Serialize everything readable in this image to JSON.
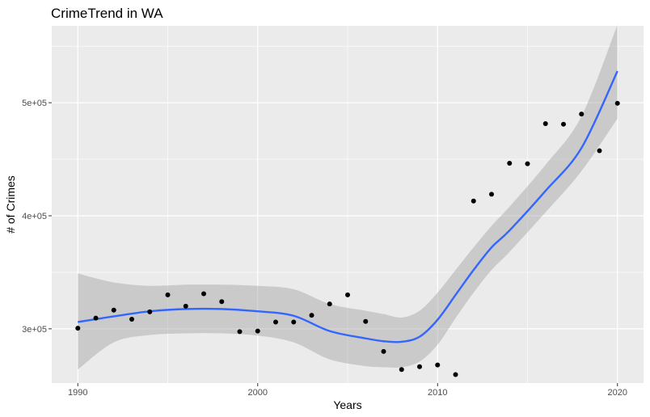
{
  "chart_data": {
    "type": "scatter",
    "title": "CrimeTrend in WA",
    "xlabel": "Years",
    "ylabel": "# of Crimes",
    "xlim": [
      1988.55,
      2021.45
    ],
    "ylim": [
      252000,
      568000
    ],
    "x_ticks": [
      1990,
      2000,
      2010,
      2020
    ],
    "x_tick_labels": [
      "1990",
      "2000",
      "2010",
      "2020"
    ],
    "y_ticks": [
      300000,
      400000,
      500000
    ],
    "y_tick_labels": [
      "3e+05",
      "4e+05",
      "5e+05"
    ],
    "grid": true,
    "legend": "none",
    "points": {
      "x": [
        1990,
        1991,
        1992,
        1993,
        1994,
        1995,
        1996,
        1997,
        1998,
        1999,
        2000,
        2001,
        2002,
        2003,
        2004,
        2005,
        2006,
        2007,
        2008,
        2009,
        2010,
        2011,
        2012,
        2013,
        2014,
        2015,
        2016,
        2017,
        2018,
        2019,
        2020
      ],
      "y": [
        300500,
        309500,
        316500,
        308500,
        315000,
        330000,
        320000,
        331000,
        324000,
        297500,
        298000,
        306000,
        306000,
        312000,
        322000,
        330000,
        306500,
        280000,
        264000,
        266500,
        268000,
        259500,
        413000,
        419000,
        446500,
        446000,
        481500,
        481000,
        490000,
        457500,
        499500
      ],
      "color": "#000000"
    },
    "smooth": {
      "method": "loess",
      "color": "#3366FF",
      "ribbon_color": "#999999",
      "x": [
        1990,
        1992,
        1994,
        1996,
        1998,
        2000,
        2002,
        2004,
        2006,
        2007,
        2008,
        2009,
        2010,
        2011,
        2012,
        2013,
        2014,
        2016,
        2018,
        2020
      ],
      "y": [
        306000,
        311000,
        315500,
        317500,
        317500,
        315500,
        311500,
        298000,
        291500,
        289000,
        288500,
        293000,
        308000,
        330000,
        352000,
        372000,
        387000,
        422000,
        460000,
        528000
      ],
      "ymin": [
        264000,
        288000,
        294500,
        296000,
        296000,
        294000,
        288000,
        273000,
        267000,
        266000,
        266000,
        271000,
        286000,
        309500,
        332000,
        352000,
        368000,
        403000,
        439500,
        486000
      ],
      "ymax": [
        349000,
        341000,
        338000,
        339000,
        339000,
        338000,
        335000,
        322000,
        316000,
        313000,
        310000,
        316000,
        332000,
        352000,
        372000,
        391000,
        408000,
        445000,
        488000,
        569000
      ]
    }
  }
}
